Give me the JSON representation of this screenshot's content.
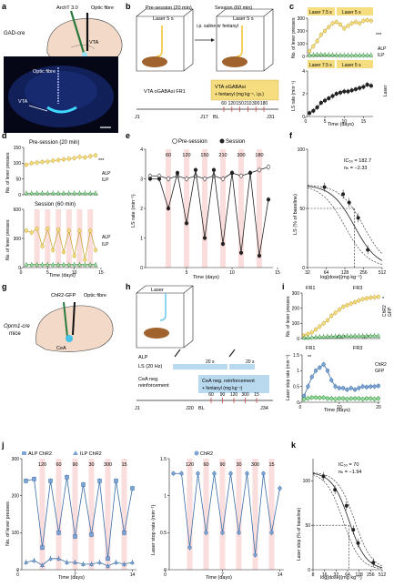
{
  "panels": {
    "a": {
      "label": "a",
      "mouse": "GAD-cre",
      "virus": "ArchT 3.0",
      "fibre": "Optic fibre",
      "region": "VTA",
      "slice_fibre": "Optic fibre",
      "slice_region": "VTA"
    },
    "b": {
      "label": "b",
      "pre": "Pre-session (20 min)",
      "session": "Session (60 min)",
      "laser": "Laser 5 s",
      "ip": "i.p. saline or fentanyl",
      "line1": "VTA oGABAsi FR1",
      "box1": "VTA oGABAsi",
      "box2": "+ fentanyl (mg kg⁻¹, i.p.)",
      "days": [
        "J1",
        "J17",
        "BL",
        "J31"
      ],
      "doses": [
        "60",
        "120",
        "150",
        "210",
        "300",
        "180"
      ]
    },
    "c": {
      "label": "c",
      "laser1": "Laser 7.5 s",
      "laser2": "Laser 5 s",
      "ylabel1": "No. of lever presses",
      "ylabel2": "LS rate (min⁻¹)",
      "xlabel": "Time (days)",
      "stars": "***",
      "legend": [
        "ALP",
        "ILP"
      ],
      "side": "Laser"
    },
    "d": {
      "label": "d",
      "pre": "Pre-session (20 min)",
      "session": "Session (60 min)",
      "ylabel": "No. of lever presses",
      "xlabel": "Time (days)",
      "stars": "***",
      "legend": [
        "ALP",
        "ILP"
      ]
    },
    "e": {
      "label": "e",
      "legend": [
        "Pre-session",
        "Session"
      ],
      "ylabel": "LS rate (min⁻¹)",
      "xlabel": "Time (days)",
      "doses": [
        "60",
        "120",
        "150",
        "210",
        "300",
        "180"
      ]
    },
    "f": {
      "label": "f",
      "ic50": "IC₅₀ = 182.7",
      "nh": "nₕ = −2.33",
      "ylabel": "LS (% of baseline)",
      "xlabel": "log[dose](mg kg⁻¹)"
    },
    "g": {
      "label": "g",
      "mouse": "Oprm1-cre",
      "mouse2": "mice",
      "virus": "ChR2-GFP",
      "fibre": "Optic fibre",
      "region": "CeA"
    },
    "h": {
      "label": "h",
      "laser": "Laser",
      "alp": "ALP",
      "ls": "LS (20 Hz)",
      "s1": "20 s",
      "s2": "20 s",
      "cea1": "CeA neg.",
      "cea2": "reinforcement",
      "box1": "CeA neg. reinforcement",
      "box2": "+ fentanyl (mg kg⁻¹)",
      "days": [
        "J1",
        "J20",
        "BL",
        "J34"
      ],
      "doses": [
        "60",
        "90",
        "120",
        "300",
        "15"
      ]
    },
    "i": {
      "label": "i",
      "fr1": "FR1",
      "fr3": "FR3",
      "ylabel1": "No. of lever presses",
      "ylabel2": "Laser stop rate (min⁻¹)",
      "xlabel": "Time (days)",
      "legend1": [
        "ALP",
        "ILP"
      ],
      "legend2": [
        "ChR2",
        "GFP"
      ],
      "stars": "*",
      "stars2": "**"
    },
    "j": {
      "label": "j",
      "legend1": [
        "ALP ChR2",
        "ILP ChR2"
      ],
      "legend2": [
        "ChR2"
      ],
      "ylabel1": "No. of lever presses",
      "ylabel2": "Laser stop rate (min⁻¹)",
      "xlabel": "Time (days)",
      "doses": [
        "120",
        "60",
        "90",
        "30",
        "300",
        "15"
      ]
    },
    "k": {
      "label": "k",
      "ic50": "IC₅₀ = 70",
      "nh": "nₕ = −1.94",
      "ylabel": "Laser stop (% of baseline)",
      "xlabel": "log[dose](mg kg⁻¹)"
    }
  },
  "chart_data": [
    {
      "id": "c-top",
      "type": "line",
      "xlabel": "",
      "ylabel": "No. of lever presses",
      "ylim": [
        0,
        300
      ],
      "x": [
        1,
        2,
        3,
        4,
        5,
        6,
        7,
        8,
        9,
        10,
        11,
        12,
        13,
        14,
        15,
        16,
        17
      ],
      "series": [
        {
          "name": "ALP",
          "values": [
            40,
            80,
            120,
            170,
            200,
            230,
            260,
            270,
            250,
            220,
            240,
            260,
            270,
            260,
            280,
            285,
            280
          ]
        },
        {
          "name": "ILP",
          "values": [
            10,
            12,
            15,
            15,
            14,
            12,
            12,
            11,
            10,
            10,
            10,
            10,
            10,
            10,
            10,
            10,
            10
          ]
        }
      ]
    },
    {
      "id": "c-bottom",
      "type": "line",
      "xlabel": "Time (days)",
      "ylabel": "LS rate (min⁻¹)",
      "ylim": [
        0,
        4
      ],
      "x": [
        1,
        2,
        3,
        4,
        5,
        6,
        7,
        8,
        9,
        10,
        11,
        12,
        13,
        14,
        15,
        16,
        17
      ],
      "series": [
        {
          "name": "",
          "values": [
            0.3,
            0.5,
            0.8,
            1.2,
            1.4,
            1.6,
            1.8,
            2.0,
            2.1,
            2.2,
            2.2,
            2.3,
            2.4,
            2.5,
            2.6,
            2.8,
            2.7
          ]
        }
      ]
    },
    {
      "id": "d-top",
      "type": "line",
      "xlabel": "",
      "ylabel": "No. of lever presses",
      "ylim": [
        0,
        150
      ],
      "x": [
        1,
        2,
        3,
        4,
        5,
        6,
        7,
        8,
        9,
        10,
        11,
        12,
        13,
        14
      ],
      "series": [
        {
          "name": "ALP",
          "values": [
            95,
            100,
            102,
            104,
            105,
            108,
            110,
            112,
            114,
            116,
            120,
            118,
            122,
            125
          ]
        },
        {
          "name": "ILP",
          "values": [
            5,
            5,
            5,
            5,
            5,
            5,
            5,
            5,
            5,
            5,
            5,
            5,
            5,
            5
          ]
        }
      ]
    },
    {
      "id": "d-bottom",
      "type": "line",
      "xlabel": "Time (days)",
      "ylabel": "No. of lever presses",
      "ylim": [
        0,
        600
      ],
      "x": [
        1,
        2,
        3,
        4,
        5,
        6,
        7,
        8,
        9,
        10,
        11,
        12,
        13,
        14
      ],
      "series": [
        {
          "name": "ALP",
          "values": [
            380,
            360,
            400,
            220,
            400,
            180,
            390,
            160,
            380,
            120,
            380,
            80,
            380,
            180
          ]
        },
        {
          "name": "ILP",
          "values": [
            30,
            30,
            30,
            30,
            30,
            30,
            30,
            30,
            30,
            30,
            30,
            30,
            30,
            30
          ]
        }
      ]
    },
    {
      "id": "e",
      "type": "line",
      "xlabel": "Time (days)",
      "ylabel": "LS rate (min⁻¹)",
      "ylim": [
        0,
        4
      ],
      "x": [
        1,
        2,
        3,
        4,
        5,
        6,
        7,
        8,
        9,
        10,
        11,
        12,
        13,
        14
      ],
      "series": [
        {
          "name": "Pre-session",
          "values": [
            3.1,
            3.1,
            3.0,
            3.1,
            3.0,
            3.1,
            3.0,
            3.1,
            3.0,
            3.2,
            3.1,
            3.2,
            3.3,
            3.4
          ]
        },
        {
          "name": "Session",
          "values": [
            3.0,
            3.0,
            2.0,
            3.2,
            1.5,
            3.3,
            1.0,
            3.3,
            0.8,
            3.2,
            0.5,
            3.2,
            0.4,
            2.3
          ]
        }
      ]
    },
    {
      "id": "f",
      "type": "scatter",
      "xlabel": "log[dose](mg kg⁻¹)",
      "ylabel": "LS (% of baseline)",
      "ylim": [
        0,
        100
      ],
      "x": [
        60,
        120,
        150,
        210,
        300
      ],
      "series": [
        {
          "name": "",
          "values": [
            68,
            62,
            55,
            42,
            15
          ]
        }
      ]
    },
    {
      "id": "i-top",
      "type": "line",
      "xlabel": "",
      "ylabel": "No. of lever presses",
      "ylim": [
        0,
        300
      ],
      "x": [
        1,
        2,
        3,
        4,
        5,
        6,
        7,
        8,
        9,
        10,
        11,
        12,
        13,
        14,
        15,
        16,
        17,
        18,
        19,
        20
      ],
      "series": [
        {
          "name": "ALP",
          "values": [
            20,
            30,
            40,
            60,
            80,
            100,
            120,
            150,
            170,
            190,
            210,
            220,
            230,
            240,
            250,
            260,
            265,
            270,
            272,
            275
          ]
        },
        {
          "name": "ILP",
          "values": [
            5,
            5,
            8,
            10,
            12,
            12,
            14,
            15,
            15,
            16,
            16,
            17,
            17,
            18,
            18,
            18,
            18,
            19,
            19,
            19
          ]
        }
      ]
    },
    {
      "id": "i-bottom",
      "type": "line",
      "xlabel": "Time (days)",
      "ylabel": "Laser stop rate (min⁻¹)",
      "ylim": [
        0,
        1.5
      ],
      "x": [
        1,
        2,
        3,
        4,
        5,
        6,
        7,
        8,
        9,
        10,
        11,
        12,
        13,
        14,
        15,
        16,
        17,
        18,
        19,
        20
      ],
      "series": [
        {
          "name": "ChR2",
          "values": [
            0.2,
            0.5,
            0.8,
            1.0,
            1.1,
            1.2,
            1.0,
            0.7,
            0.5,
            0.45,
            0.45,
            0.4,
            0.45,
            0.4,
            0.45,
            0.5,
            0.48,
            0.5,
            0.5,
            0.52
          ]
        },
        {
          "name": "GFP",
          "values": [
            0.1,
            0.12,
            0.15,
            0.15,
            0.14,
            0.15,
            0.12,
            0.12,
            0.1,
            0.12,
            0.12,
            0.1,
            0.12,
            0.12,
            0.12,
            0.1,
            0.12,
            0.12,
            0.1,
            0.12
          ]
        }
      ]
    },
    {
      "id": "j-left",
      "type": "line",
      "xlabel": "Time (days)",
      "ylabel": "No. of lever presses",
      "ylim": [
        0,
        300
      ],
      "x": [
        1,
        2,
        3,
        4,
        5,
        6,
        7,
        8,
        9,
        10,
        11,
        12,
        13,
        14
      ],
      "series": [
        {
          "name": "ALP ChR2",
          "values": [
            240,
            245,
            60,
            240,
            100,
            250,
            90,
            230,
            95,
            240,
            30,
            240,
            100,
            220
          ]
        },
        {
          "name": "ILP ChR2",
          "values": [
            20,
            25,
            12,
            30,
            30,
            20,
            20,
            15,
            15,
            20,
            10,
            20,
            15,
            20
          ]
        }
      ]
    },
    {
      "id": "j-right",
      "type": "line",
      "xlabel": "Time (days)",
      "ylabel": "Laser stop rate (min⁻¹)",
      "ylim": [
        0,
        1.5
      ],
      "x": [
        1,
        2,
        3,
        4,
        5,
        6,
        7,
        8,
        9,
        10,
        11,
        12,
        13,
        14
      ],
      "series": [
        {
          "name": "ChR2",
          "values": [
            1.3,
            1.3,
            0.3,
            1.3,
            0.5,
            1.3,
            0.5,
            1.3,
            0.5,
            1.3,
            0.2,
            1.3,
            0.5,
            1.1
          ]
        }
      ]
    },
    {
      "id": "k",
      "type": "scatter",
      "xlabel": "log[dose](mg kg⁻¹)",
      "ylabel": "Laser stop (% of baseline)",
      "ylim": [
        0,
        125
      ],
      "x": [
        15,
        30,
        60,
        90,
        120,
        300
      ],
      "series": [
        {
          "name": "",
          "values": [
            105,
            90,
            72,
            45,
            30,
            8
          ]
        }
      ]
    }
  ]
}
